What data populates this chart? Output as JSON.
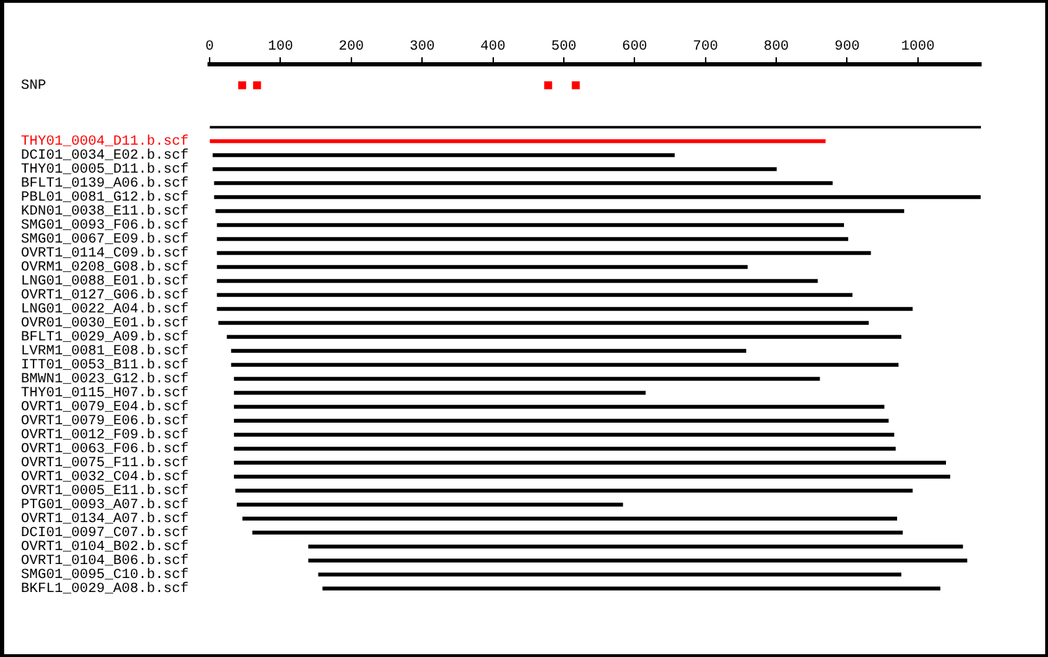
{
  "chart_data": {
    "type": "bar",
    "orientation": "horizontal",
    "categories": [
      null,
      "SNP",
      null,
      null,
      null,
      "THY01_0004_D11.b.scf",
      "DCI01_0034_E02.b.scf",
      "THY01_0005_D11.b.scf",
      "BFLT1_0139_A06.b.scf",
      "PBL01_0081_G12.b.scf",
      "KDN01_0038_E11.b.scf",
      "SMG01_0093_F06.b.scf",
      "SMG01_0067_E09.b.scf",
      "OVRT1_0114_C09.b.scf",
      "OVRM1_0208_G08.b.scf",
      "LNG01_0088_E01.b.scf",
      "OVRT1_0127_G06.b.scf",
      "LNG01_0022_A04.b.scf",
      "OVR01_0030_E01.b.scf",
      "BFLT1_0029_A09.b.scf",
      "LVRM1_0081_E08.b.scf",
      "ITT01_0053_B11.b.scf",
      "BMWN1_0023_G12.b.scf",
      "THY01_0115_H07.b.scf",
      "OVRT1_0079_E04.b.scf",
      "OVRT1_0079_E06.b.scf",
      "OVRT1_0012_F09.b.scf",
      "OVRT1_0063_F06.b.scf",
      "OVRT1_0075_F11.b.scf",
      "OVRT1_0032_C04.b.scf",
      "OVRT1_0005_E11.b.scf",
      "PTG01_0093_A07.b.scf",
      "OVRT1_0134_A07.b.scf",
      "DCI01_0097_C07.b.scf",
      "OVRT1_0104_B02.b.scf",
      "OVRT1_0104_B06.b.scf",
      "SMG01_0095_C10.b.scf",
      "BKFL1_0029_A08.b.scf"
    ],
    "series": [
      {
        "type": "bar",
        "color": "#000000",
        "values": [
          null,
          null,
          null,
          null,
          1089,
          null,
          null,
          null,
          null,
          null,
          null,
          null,
          null,
          null,
          null,
          null,
          null,
          null,
          null,
          null,
          null,
          null,
          null,
          null,
          null,
          null,
          null,
          null,
          null,
          null,
          null,
          null,
          null,
          null,
          null,
          null,
          null,
          null
        ],
        "base": [
          null,
          null,
          null,
          null,
          0,
          null,
          null,
          null,
          null,
          null,
          null,
          null,
          null,
          null,
          null,
          null,
          null,
          null,
          null,
          null,
          null,
          null,
          null,
          null,
          null,
          null,
          null,
          null,
          null,
          null,
          null,
          null,
          null,
          null,
          null,
          null,
          null,
          null
        ]
      },
      {
        "type": "bar",
        "values": [
          null,
          null,
          null,
          null,
          null,
          868,
          651,
          795,
          872,
          1081,
          971,
          884,
          890,
          922,
          748,
          847,
          896,
          981,
          917,
          951,
          726,
          941,
          826,
          580,
          917,
          923,
          931,
          933,
          1004,
          1010,
          955,
          544,
          923,
          917,
          923,
          929,
          822,
          871
        ],
        "base": [
          null,
          null,
          null,
          null,
          null,
          1,
          5,
          5,
          7,
          7,
          9,
          11,
          11,
          11,
          11,
          11,
          11,
          11,
          13,
          25,
          31,
          31,
          35,
          35,
          35,
          35,
          35,
          35,
          35,
          35,
          37,
          39,
          47,
          61,
          140,
          140,
          154,
          160
        ],
        "colors": [
          null,
          null,
          null,
          null,
          null,
          "#ff0000",
          "#000000",
          "#000000",
          "#000000",
          "#000000",
          "#000000",
          "#000000",
          "#000000",
          "#000000",
          "#000000",
          "#000000",
          "#000000",
          "#000000",
          "#000000",
          "#000000",
          "#000000",
          "#000000",
          "#000000",
          "#000000",
          "#000000",
          "#000000",
          "#000000",
          "#000000",
          "#000000",
          "#000000",
          "#000000",
          "#000000",
          "#000000",
          "#000000",
          "#000000",
          "#000000",
          "#000000",
          "#000000"
        ]
      },
      {
        "type": "scatter",
        "x": [
          "SNP",
          "SNP",
          "SNP",
          "SNP"
        ],
        "values": [
          46,
          67,
          478,
          517
        ],
        "color": "#ff0000",
        "marker": "square"
      }
    ],
    "xlim": [
      0,
      1089
    ],
    "xticks": [
      0,
      100,
      200,
      300,
      400,
      500,
      600,
      700,
      800,
      900,
      1000
    ]
  }
}
